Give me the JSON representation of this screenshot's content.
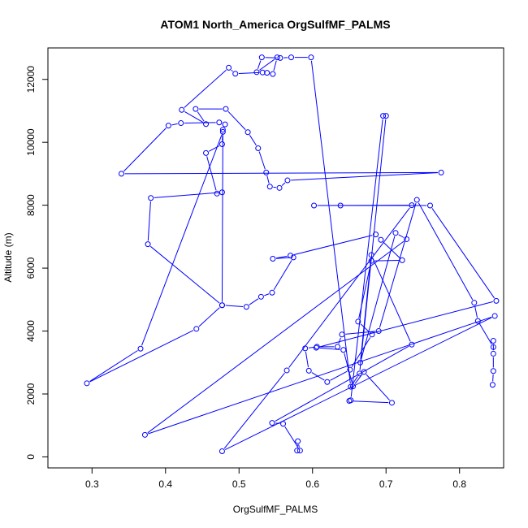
{
  "chart_data": {
    "type": "line",
    "title": "ATOM1 North_America OrgSulfMF_PALMS",
    "xlabel": "OrgSulfMF_PALMS",
    "ylabel": "Altitude (m)",
    "xlim": [
      0.24,
      0.86
    ],
    "ylim": [
      -350,
      13000
    ],
    "xticks": [
      0.3,
      0.4,
      0.5,
      0.6,
      0.7,
      0.8
    ],
    "xtick_labels": [
      "0.3",
      "0.4",
      "0.5",
      "0.6",
      "0.7",
      "0.8"
    ],
    "yticks": [
      0,
      2000,
      4000,
      6000,
      8000,
      10000,
      12000
    ],
    "ytick_labels": [
      "0",
      "2000",
      "4000",
      "6000",
      "8000",
      "10000",
      "12000"
    ],
    "grid": false,
    "line_style": "line with open circle markers",
    "color": "#0000ff",
    "series": [
      {
        "points": [
          [
            0.579,
            200
          ],
          [
            0.58,
            500
          ],
          [
            0.583,
            200
          ],
          [
            0.56,
            1050
          ],
          [
            0.545,
            1080
          ],
          [
            0.735,
            3570
          ],
          [
            0.68,
            6420
          ],
          [
            0.665,
            3000
          ],
          [
            0.713,
            7120
          ],
          [
            0.728,
            6920
          ],
          [
            0.372,
            700
          ],
          [
            0.848,
            4480
          ],
          [
            0.477,
            180
          ],
          [
            0.565,
            2750
          ],
          [
            0.735,
            8000
          ],
          [
            0.602,
            7990
          ],
          [
            0.638,
            7990
          ],
          [
            0.76,
            7990
          ],
          [
            0.85,
            4960
          ],
          [
            0.605,
            3470
          ],
          [
            0.642,
            3400
          ],
          [
            0.655,
            2240
          ],
          [
            0.67,
            2700
          ],
          [
            0.708,
            1720
          ],
          [
            0.65,
            1780
          ],
          [
            0.652,
            1800
          ],
          [
            0.696,
            10840
          ],
          [
            0.7,
            10840
          ],
          [
            0.664,
            2650
          ],
          [
            0.652,
            2230
          ],
          [
            0.598,
            12700
          ],
          [
            0.571,
            12700
          ],
          [
            0.556,
            12680
          ],
          [
            0.531,
            12700
          ],
          [
            0.524,
            12230
          ],
          [
            0.552,
            12700
          ],
          [
            0.546,
            12170
          ],
          [
            0.538,
            12210
          ],
          [
            0.532,
            12220
          ],
          [
            0.495,
            12180
          ],
          [
            0.486,
            12370
          ],
          [
            0.422,
            11030
          ],
          [
            0.455,
            10580
          ],
          [
            0.441,
            11060
          ],
          [
            0.482,
            11060
          ],
          [
            0.512,
            10320
          ],
          [
            0.526,
            9810
          ],
          [
            0.537,
            9040
          ],
          [
            0.542,
            8590
          ],
          [
            0.555,
            8550
          ],
          [
            0.566,
            8790
          ],
          [
            0.775,
            9040
          ],
          [
            0.34,
            9000
          ],
          [
            0.404,
            10530
          ],
          [
            0.421,
            10610
          ],
          [
            0.473,
            10630
          ],
          [
            0.481,
            10570
          ],
          [
            0.478,
            10400
          ],
          [
            0.477,
            9940
          ],
          [
            0.455,
            9660
          ],
          [
            0.47,
            8370
          ],
          [
            0.477,
            8410
          ],
          [
            0.38,
            8230
          ],
          [
            0.376,
            6760
          ],
          [
            0.477,
            4820
          ],
          [
            0.478,
            10330
          ],
          [
            0.366,
            3440
          ],
          [
            0.293,
            2340
          ],
          [
            0.442,
            4070
          ],
          [
            0.477,
            4820
          ],
          [
            0.51,
            4770
          ],
          [
            0.53,
            5090
          ],
          [
            0.545,
            5220
          ],
          [
            0.574,
            6340
          ],
          [
            0.546,
            6300
          ],
          [
            0.57,
            6400
          ],
          [
            0.686,
            7070
          ],
          [
            0.693,
            6900
          ],
          [
            0.722,
            6250
          ],
          [
            0.68,
            6230
          ],
          [
            0.662,
            4300
          ],
          [
            0.681,
            3890
          ],
          [
            0.651,
            2770
          ],
          [
            0.62,
            2380
          ],
          [
            0.595,
            2740
          ],
          [
            0.59,
            3450
          ],
          [
            0.606,
            3500
          ],
          [
            0.634,
            3500
          ],
          [
            0.64,
            3890
          ],
          [
            0.69,
            4000
          ],
          [
            0.742,
            8170
          ],
          [
            0.82,
            4900
          ],
          [
            0.825,
            4320
          ],
          [
            0.846,
            3490
          ],
          [
            0.846,
            3690
          ],
          [
            0.846,
            3280
          ],
          [
            0.846,
            2730
          ],
          [
            0.845,
            2290
          ]
        ]
      }
    ]
  }
}
